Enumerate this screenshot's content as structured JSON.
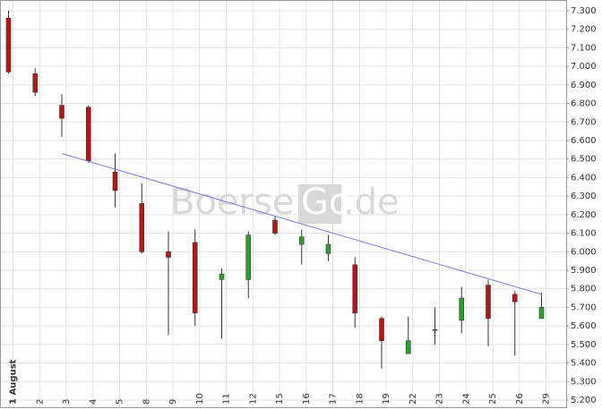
{
  "chart_data": {
    "type": "candlestick",
    "watermark": {
      "left": "Boerse",
      "box": "Go",
      "right": ".de"
    },
    "categories": [
      "1 August",
      "2",
      "3",
      "4",
      "5",
      "8",
      "9",
      "10",
      "11",
      "12",
      "15",
      "16",
      "17",
      "18",
      "19",
      "22",
      "23",
      "24",
      "25",
      "26",
      "29"
    ],
    "open": [
      7.26,
      6.96,
      6.79,
      6.78,
      6.43,
      6.26,
      6.0,
      6.05,
      5.85,
      5.85,
      6.17,
      6.04,
      5.99,
      5.93,
      5.64,
      5.45,
      5.58,
      5.63,
      5.82,
      5.77,
      5.64
    ],
    "high": [
      7.3,
      6.99,
      6.85,
      6.79,
      6.53,
      6.37,
      6.11,
      6.12,
      5.91,
      6.11,
      6.19,
      6.12,
      6.09,
      5.97,
      5.65,
      5.65,
      5.7,
      5.81,
      5.85,
      5.79,
      5.78
    ],
    "low": [
      6.96,
      6.84,
      6.62,
      6.48,
      6.24,
      5.99,
      5.55,
      5.6,
      5.53,
      5.75,
      6.09,
      5.93,
      5.95,
      5.59,
      5.37,
      5.45,
      5.5,
      5.56,
      5.49,
      5.44,
      5.64
    ],
    "close": [
      6.97,
      6.86,
      6.72,
      6.49,
      6.33,
      6.0,
      5.97,
      5.67,
      5.88,
      6.09,
      6.1,
      6.08,
      6.04,
      5.67,
      5.52,
      5.52,
      5.58,
      5.75,
      5.64,
      5.73,
      5.7
    ],
    "up_color": "#2e9e2e",
    "down_color": "#b01818",
    "wick_color": "#333333",
    "trendline": {
      "color": "#7a7ae0",
      "from": {
        "category": "3",
        "value": 6.53
      },
      "to": {
        "category": "29",
        "value": 5.77
      }
    },
    "ylim": [
      5.2,
      7.3
    ],
    "yticks": [
      {
        "value": 7.3,
        "label": "7.300"
      },
      {
        "value": 7.2,
        "label": "7.200"
      },
      {
        "value": 7.1,
        "label": "7.100"
      },
      {
        "value": 7.0,
        "label": "7.000"
      },
      {
        "value": 6.9,
        "label": "6.900"
      },
      {
        "value": 6.8,
        "label": "6.800"
      },
      {
        "value": 6.7,
        "label": "6.700"
      },
      {
        "value": 6.6,
        "label": "6.600"
      },
      {
        "value": 6.5,
        "label": "6.500"
      },
      {
        "value": 6.4,
        "label": "6.400"
      },
      {
        "value": 6.3,
        "label": "6.300"
      },
      {
        "value": 6.2,
        "label": "6.200"
      },
      {
        "value": 6.1,
        "label": "6.100"
      },
      {
        "value": 6.0,
        "label": "6.000"
      },
      {
        "value": 5.9,
        "label": "5.900"
      },
      {
        "value": 5.8,
        "label": "5.800"
      },
      {
        "value": 5.7,
        "label": "5.700"
      },
      {
        "value": 5.6,
        "label": "5.600"
      },
      {
        "value": 5.5,
        "label": "5.500"
      },
      {
        "value": 5.4,
        "label": "5.400"
      },
      {
        "value": 5.3,
        "label": "5.300"
      },
      {
        "value": 5.2,
        "label": "5.200"
      }
    ],
    "grid": true
  }
}
